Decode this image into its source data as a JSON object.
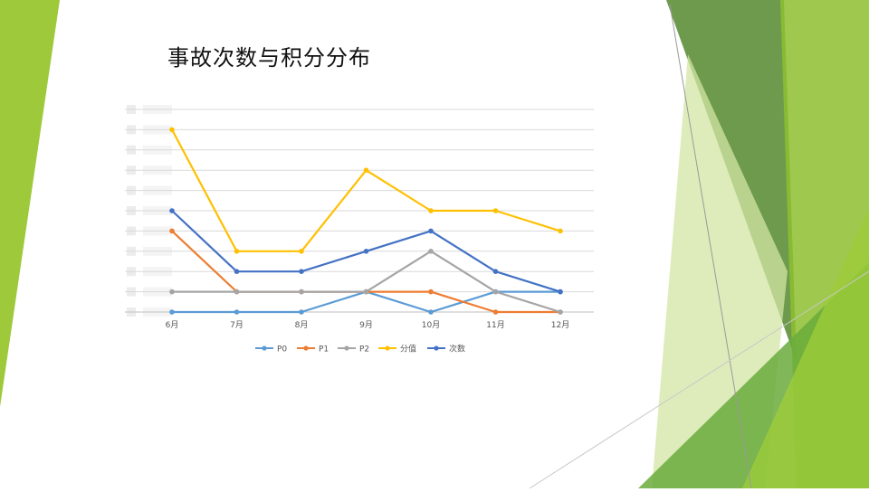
{
  "slide": {
    "title": "事故次数与积分分布"
  },
  "colors": {
    "accent_green_light": "#9dc93b",
    "accent_green_dark": "#5e8f3a",
    "accent_green_pale": "#d3e6a4"
  },
  "chart_data": {
    "type": "line",
    "categories": [
      "6月",
      "7月",
      "8月",
      "9月",
      "10月",
      "11月",
      "12月"
    ],
    "ylim": [
      0,
      10
    ],
    "grid": true,
    "legend_position": "bottom",
    "series": [
      {
        "name": "P0",
        "color": "#5b9bd5",
        "values": [
          0,
          0,
          0,
          1,
          0,
          1,
          1
        ]
      },
      {
        "name": "P1",
        "color": "#ed7d31",
        "values": [
          4,
          1,
          1,
          1,
          1,
          0,
          0
        ]
      },
      {
        "name": "P2",
        "color": "#a5a5a5",
        "values": [
          1,
          1,
          1,
          1,
          3,
          1,
          0
        ]
      },
      {
        "name": "分值",
        "color": "#ffc000",
        "values": [
          9,
          3,
          3,
          7,
          5,
          5,
          4
        ]
      },
      {
        "name": "次数",
        "color": "#4472c4",
        "values": [
          5,
          2,
          2,
          3,
          4,
          2,
          1
        ]
      }
    ]
  }
}
